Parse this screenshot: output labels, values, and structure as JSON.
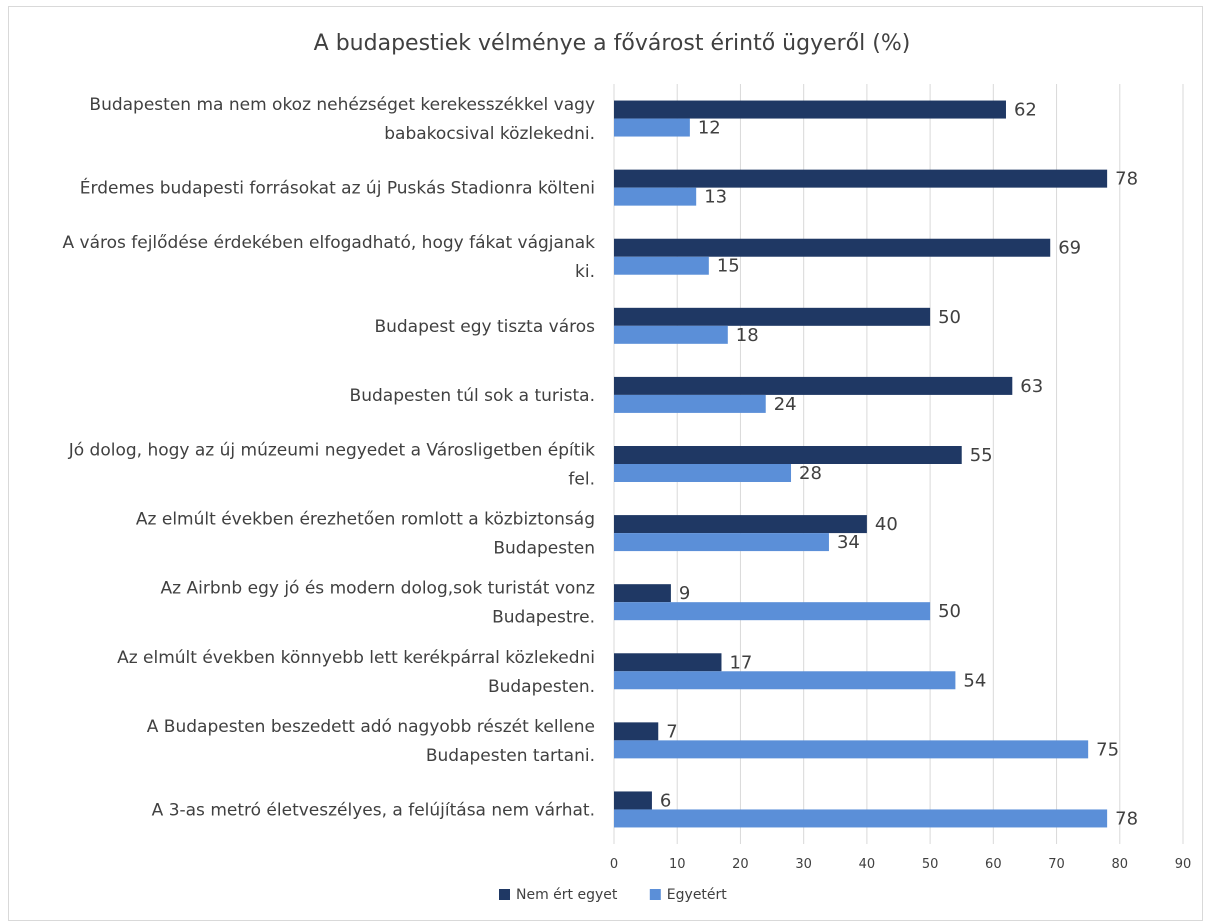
{
  "chart_data": {
    "type": "bar",
    "orientation": "horizontal",
    "title": "A budapestiek vélménye a fővárost érintő ügyeről (%)",
    "categories": [
      [
        "Budapesten ma nem okoz nehézséget kerekesszékkel vagy",
        "babakocsival közlekedni."
      ],
      [
        "Érdemes budapesti forrásokat az új Puskás Stadionra költeni"
      ],
      [
        "A város fejlődése érdekében elfogadható, hogy fákat vágjanak",
        "ki."
      ],
      [
        "Budapest egy tiszta város"
      ],
      [
        "Budapesten túl sok a turista."
      ],
      [
        "Jó dolog, hogy az új múzeumi negyedet a Városligetben építik",
        "fel."
      ],
      [
        "Az elmúlt években érezhetően romlott a közbiztonság",
        "Budapesten"
      ],
      [
        "Az Airbnb egy jó és modern dolog,sok turistát vonz",
        "Budapestre."
      ],
      [
        "Az elmúlt években könnyebb lett kerékpárral közlekedni",
        "Budapesten."
      ],
      [
        "A Budapesten beszedett adó nagyobb részét kellene",
        "Budapesten tartani."
      ],
      [
        "A 3-as metró életveszélyes, a felújítása nem várhat."
      ]
    ],
    "series": [
      {
        "name": "Nem ért egyet",
        "color": "#1f3864",
        "values": [
          62,
          78,
          69,
          50,
          63,
          55,
          40,
          9,
          17,
          7,
          6
        ]
      },
      {
        "name": "Egyetért",
        "color": "#5b8fd8",
        "values": [
          12,
          13,
          15,
          18,
          24,
          28,
          34,
          50,
          54,
          75,
          78
        ]
      }
    ],
    "xlim": [
      0,
      90
    ],
    "xticks": [
      0,
      10,
      20,
      30,
      40,
      50,
      60,
      70,
      80,
      90
    ],
    "grid": "vertical",
    "legend_position": "bottom",
    "data_labels": true
  }
}
